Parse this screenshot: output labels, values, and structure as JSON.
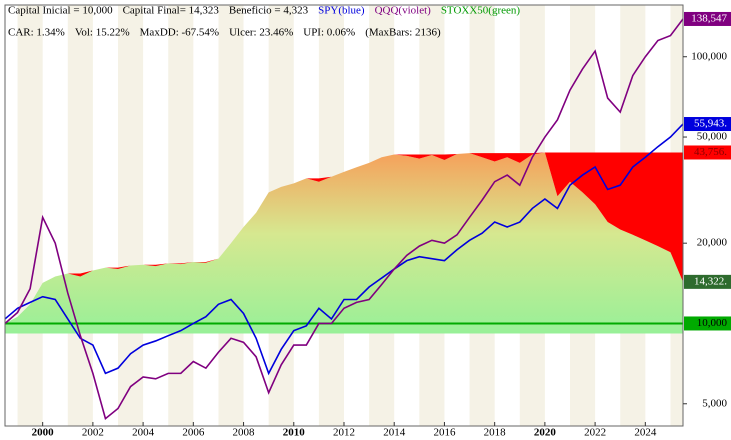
{
  "chart_data": {
    "type": "line",
    "header_lines": [
      [
        {
          "text": "Capital Inicial = 10,000",
          "color": "#000000"
        },
        {
          "text": "Capital Final= 14,323",
          "color": "#000000"
        },
        {
          "text": "Beneficio = 4,323",
          "color": "#000000"
        }
      ],
      [
        {
          "text": "CAR: 1.34%",
          "color": "#000000"
        },
        {
          "text": "Vol: 15.22%",
          "color": "#000000"
        },
        {
          "text": "MaxDD: -67.54%",
          "color": "#000000"
        },
        {
          "text": "Ulcer: 23.46%",
          "color": "#000000"
        },
        {
          "text": "UPI: 0.06%",
          "color": "#000000"
        },
        {
          "text": "(MaxBars: 2136)",
          "color": "#000000"
        }
      ]
    ],
    "x": [
      1998.5,
      1999,
      1999.5,
      2000,
      2000.5,
      2001,
      2001.5,
      2002,
      2002.5,
      2003,
      2003.5,
      2004,
      2004.5,
      2005,
      2005.5,
      2006,
      2006.5,
      2007,
      2007.5,
      2008,
      2008.5,
      2009,
      2009.5,
      2010,
      2010.5,
      2011,
      2011.5,
      2012,
      2012.5,
      2013,
      2013.5,
      2014,
      2014.5,
      2015,
      2015.5,
      2016,
      2016.5,
      2017,
      2017.5,
      2018,
      2018.5,
      2019,
      2019.5,
      2020,
      2020.5,
      2021,
      2021.5,
      2022,
      2022.5,
      2023,
      2023.5,
      2024,
      2024.5,
      2025,
      2025.5
    ],
    "series": [
      {
        "name": "SPY(blue)",
        "color": "#0000dd",
        "style": "line",
        "values": [
          10400,
          11400,
          12000,
          12600,
          12300,
          10400,
          8800,
          8300,
          6500,
          6800,
          7700,
          8300,
          8600,
          9000,
          9400,
          10000,
          10600,
          11800,
          12300,
          10900,
          8800,
          6500,
          8000,
          9400,
          9800,
          11400,
          10400,
          12300,
          12300,
          13700,
          14800,
          16000,
          17200,
          17800,
          17500,
          17200,
          18900,
          20500,
          21800,
          24000,
          23000,
          24000,
          27000,
          29300,
          27000,
          33000,
          36000,
          38600,
          31800,
          33000,
          38600,
          42000,
          46000,
          50000,
          55943
        ]
      },
      {
        "name": "QQQ(violet)",
        "color": "#800080",
        "style": "line",
        "values": [
          10000,
          11000,
          13500,
          25000,
          20000,
          13000,
          9000,
          6500,
          4400,
          4800,
          5800,
          6300,
          6200,
          6500,
          6500,
          7200,
          6800,
          7800,
          8800,
          8500,
          7500,
          5500,
          7000,
          8300,
          8300,
          10000,
          10000,
          11400,
          12000,
          12300,
          14000,
          16000,
          18000,
          19500,
          20500,
          20000,
          21500,
          25000,
          29000,
          34000,
          36000,
          33000,
          42000,
          50000,
          58000,
          75000,
          90000,
          105000,
          70000,
          62000,
          85000,
          100000,
          115000,
          120000,
          138547
        ]
      },
      {
        "name": "STOXX50(green)",
        "color": "#009900",
        "style": "equity",
        "values": [
          10000,
          10600,
          11800,
          14200,
          15000,
          15400,
          15000,
          15800,
          16200,
          16000,
          16500,
          16600,
          16400,
          16800,
          16700,
          17000,
          16900,
          17500,
          20000,
          23000,
          26000,
          31000,
          32500,
          33500,
          35000,
          34000,
          35500,
          37000,
          38500,
          40000,
          42000,
          43000,
          42500,
          41500,
          42800,
          41000,
          43200,
          43500,
          42000,
          40500,
          42000,
          40000,
          43000,
          43756,
          30000,
          34000,
          31000,
          28000,
          24000,
          22500,
          21500,
          20500,
          19500,
          18500,
          14322
        ]
      }
    ],
    "baseline": {
      "value": 10000,
      "label": "10,000",
      "color": "#00aa00"
    },
    "end_labels": [
      {
        "value": 138547,
        "label": "138,547",
        "color": "#800080"
      },
      {
        "value": 55943,
        "label": "55,943.",
        "color": "#0000dd"
      },
      {
        "value": 43756,
        "label": "43,756.",
        "color": "#ff0000"
      },
      {
        "value": 14322,
        "label": "14,322.",
        "color": "#2e6b2e"
      }
    ],
    "xlim": [
      1998.5,
      2025.5
    ],
    "xticks": [
      2000,
      2002,
      2004,
      2006,
      2008,
      2010,
      2012,
      2014,
      2016,
      2018,
      2020,
      2022,
      2024
    ],
    "ylim": [
      4127,
      156300
    ],
    "log_y": true,
    "yticks": [
      {
        "value": 5000,
        "label": "5,000"
      },
      {
        "value": 20000,
        "label": "20,000"
      },
      {
        "value": 50000,
        "label": "50,000"
      },
      {
        "value": 100000,
        "label": "100,000"
      }
    ]
  }
}
